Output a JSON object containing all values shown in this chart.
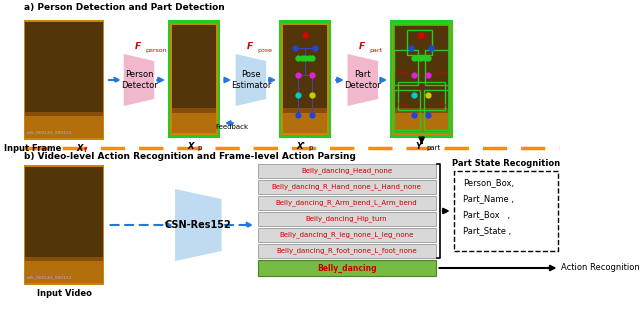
{
  "title_a": "a) Person Detection and Part Detection",
  "title_b": "b) Video-level Action Recognition and Frame-level Action Parsing",
  "input_frame_label": "Input Frame X",
  "input_frame_sub": "f",
  "input_video_label": "Input Video",
  "xp_label": "X",
  "xp_sub": "p",
  "xp_prime_label": "X'",
  "xp_prime_sub": "p",
  "ypart_label": "Y",
  "ypart_sub": "part",
  "f_person_label": "F",
  "f_person_sub": "person",
  "f_pose_label": "F",
  "f_pose_sub": "pose",
  "f_part_label": "F",
  "f_part_sub": "part",
  "person_detector_label": "Person\nDetector",
  "pose_estimator_label": "Pose\nEstimator",
  "part_detector_label": "Part\nDetector",
  "feedback_label": "Feedback",
  "csn_label": "CSN-Res152",
  "part_state_label": "Part State Recognition",
  "action_rec_label": "Action Recognition",
  "output_labels": [
    "Belly_dancing_Head_none",
    "Belly_dancing_R_Hand_none_L_Hand_none",
    "Belly_dancing_R_Arm_bend_L_Arm_bend",
    "Belly_dancing_Hip_turn",
    "Belly_dancing_R_leg_none_L_leg_none",
    "Belly_dancing_R_foot_none_L_foot_none"
  ],
  "action_label": "Belly_dancing",
  "part_state_content": [
    "Person_Box,",
    "Part_Name ,",
    "Part_Box   ,",
    "Part_State ,"
  ],
  "bg_color": "#ffffff",
  "orange_dashed": "#FF8C00",
  "person_detector_color": "#F0B0C8",
  "pose_estimator_color": "#B8D8F0",
  "part_detector_color": "#F0B0C8",
  "csn_color": "#B8D8F0",
  "img_border_color": "#22CC22",
  "arrow_color": "#2277DD",
  "red_text_color": "#DD0000",
  "gray_box_color": "#D8D8D8",
  "green_box_color": "#77BB44",
  "output_text_color": "#CC0000",
  "img_orange": "#C8860A",
  "img_dark": "#2A1A08"
}
